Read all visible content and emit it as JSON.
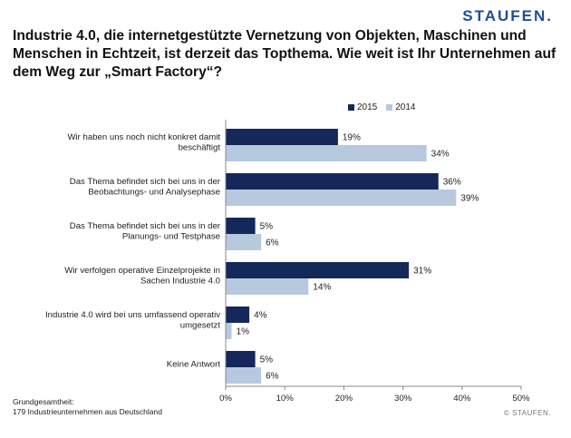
{
  "brand": {
    "logo_text": "STAUFEN."
  },
  "header": {
    "title": "Industrie 4.0, die internetgestützte Vernetzung von Objekten, Maschinen und Menschen in Echtzeit, ist derzeit das Topthema. Wie weit ist Ihr Unternehmen auf dem Weg zur „Smart Factory“?"
  },
  "footer": {
    "note_line1": "Grundgesamtheit:",
    "note_line2": "179 Industrieunternehmen aus Deutschland",
    "copyright": "© STAUFEN."
  },
  "chart_data": {
    "type": "bar",
    "orientation": "horizontal",
    "title": "",
    "xlabel": "",
    "ylabel": "",
    "xlim": [
      0,
      50
    ],
    "xticks": [
      "0%",
      "10%",
      "20%",
      "30%",
      "40%",
      "50%"
    ],
    "grid": false,
    "legend_placement": "top-right",
    "categories": [
      [
        "Wir haben uns noch nicht konkret damit",
        "beschäftigt"
      ],
      [
        "Das Thema befindet sich bei uns in der",
        "Beobachtungs- und Analysephase"
      ],
      [
        "Das Thema befindet sich bei uns in der",
        "Planungs- und Testphase"
      ],
      [
        "Wir verfolgen operative Einzelprojekte in",
        "Sachen Industrie 4.0"
      ],
      [
        "Industrie 4.0 wird bei uns umfassend operativ",
        "umgesetzt"
      ],
      [
        "Keine Antwort"
      ]
    ],
    "series": [
      {
        "name": "2015",
        "color": "#14285a",
        "values": [
          19,
          36,
          5,
          31,
          4,
          5
        ],
        "labels": [
          "19%",
          "36%",
          "5%",
          "31%",
          "4%",
          "5%"
        ]
      },
      {
        "name": "2014",
        "color": "#b7c9df",
        "values": [
          34,
          39,
          6,
          14,
          1,
          6
        ],
        "labels": [
          "34%",
          "39%",
          "6%",
          "14%",
          "1%",
          "6%"
        ]
      }
    ]
  }
}
